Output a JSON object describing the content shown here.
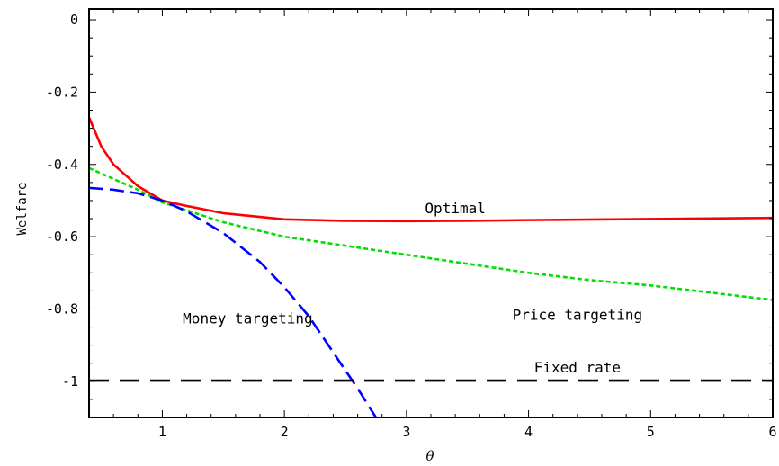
{
  "chart_data": {
    "type": "line",
    "title": "",
    "xlabel": "θ",
    "ylabel": "Welfare",
    "xlim": [
      0.4,
      6
    ],
    "ylim": [
      -1.1,
      0.03
    ],
    "xticks": [
      1,
      2,
      3,
      4,
      5,
      6
    ],
    "xtick_labels": [
      "1",
      "2",
      "3",
      "4",
      "5",
      "6"
    ],
    "yticks": [
      0,
      -0.2,
      -0.4,
      -0.6,
      -0.8,
      -1
    ],
    "ytick_labels": [
      "0",
      "-0.2",
      "-0.4",
      "-0.6",
      "-0.8",
      "-1"
    ],
    "grid": false,
    "legend": "none",
    "series": [
      {
        "name": "Optimal",
        "color": "#ff0000",
        "style": "solid",
        "x": [
          0.4,
          0.5,
          0.6,
          0.7,
          0.8,
          0.9,
          1.0,
          1.2,
          1.5,
          2.0,
          2.5,
          3.0,
          3.5,
          4.0,
          5.0,
          6.0
        ],
        "y": [
          -0.27,
          -0.35,
          -0.4,
          -0.43,
          -0.46,
          -0.48,
          -0.5,
          -0.515,
          -0.535,
          -0.552,
          -0.556,
          -0.557,
          -0.556,
          -0.554,
          -0.551,
          -0.548
        ]
      },
      {
        "name": "Price targeting",
        "color": "#00e000",
        "style": "dotted",
        "x": [
          0.4,
          0.6,
          0.8,
          1.0,
          1.5,
          2.0,
          2.5,
          3.0,
          3.5,
          4.0,
          4.5,
          5.0,
          5.5,
          6.0
        ],
        "y": [
          -0.41,
          -0.44,
          -0.47,
          -0.505,
          -0.56,
          -0.6,
          -0.625,
          -0.65,
          -0.675,
          -0.7,
          -0.72,
          -0.735,
          -0.755,
          -0.775
        ]
      },
      {
        "name": "Money targeting",
        "color": "#0000ff",
        "style": "dashed",
        "x": [
          0.4,
          0.6,
          0.8,
          1.0,
          1.2,
          1.5,
          1.8,
          2.0,
          2.2,
          2.4,
          2.6,
          2.75
        ],
        "y": [
          -0.465,
          -0.47,
          -0.48,
          -0.5,
          -0.53,
          -0.59,
          -0.67,
          -0.74,
          -0.82,
          -0.92,
          -1.02,
          -1.1
        ]
      },
      {
        "name": "Fixed rate",
        "color": "#000000",
        "style": "longdash",
        "x": [
          0.4,
          1.0,
          2.0,
          3.0,
          4.0,
          5.0,
          6.0
        ],
        "y": [
          -0.998,
          -0.998,
          -0.998,
          -0.998,
          -0.998,
          -0.998,
          -0.998
        ]
      }
    ],
    "annotations": [
      {
        "text": "Optimal",
        "x": 3.4,
        "y": -0.535
      },
      {
        "text": "Price targeting",
        "x": 4.4,
        "y": -0.83
      },
      {
        "text": "Money targeting",
        "x": 1.7,
        "y": -0.84
      },
      {
        "text": "Fixed rate",
        "x": 4.4,
        "y": -0.975
      }
    ]
  }
}
